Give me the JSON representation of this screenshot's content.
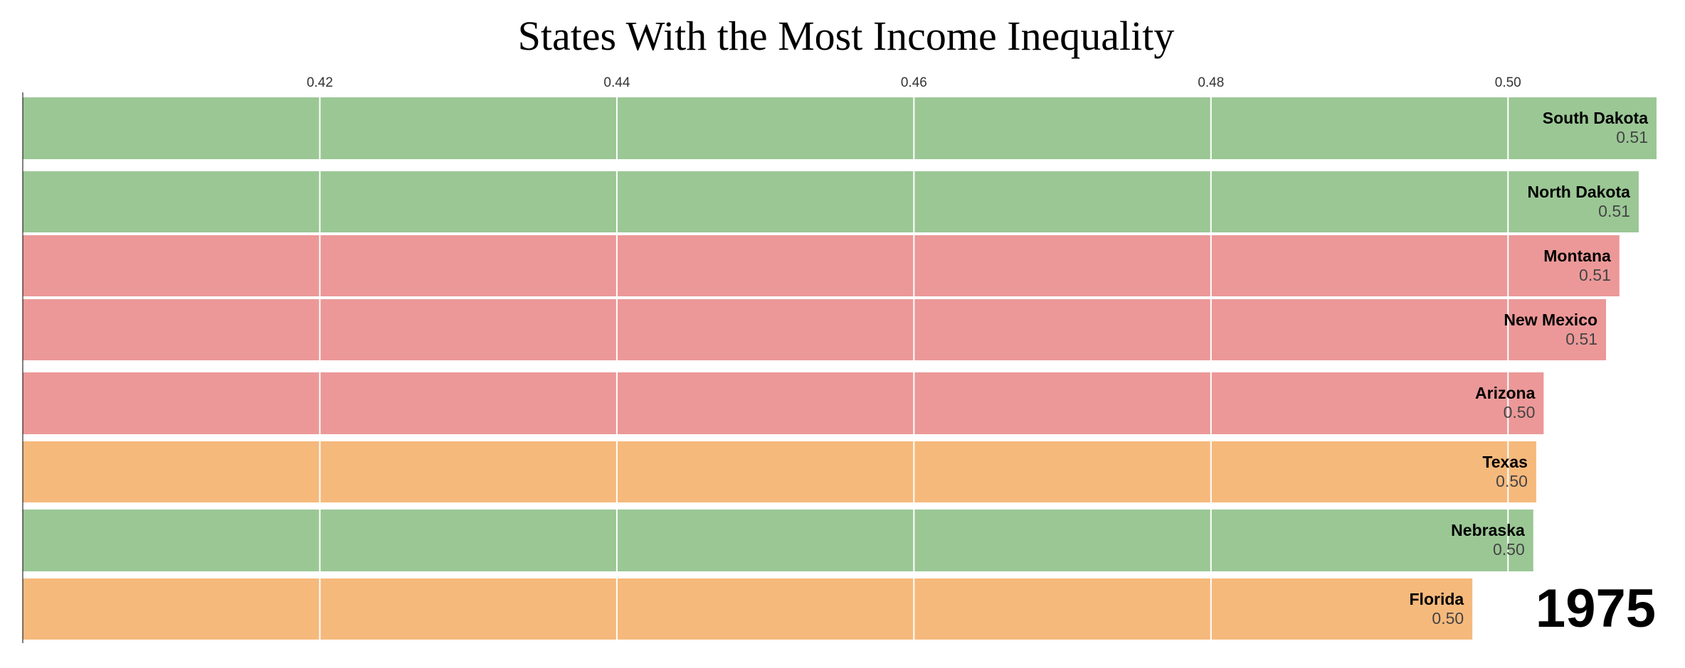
{
  "chart_data": {
    "type": "bar",
    "orientation": "horizontal",
    "title": "States With the Most Income Inequality",
    "xticks": [
      "0.42",
      "0.44",
      "0.46",
      "0.48",
      "0.50"
    ],
    "xlim": [
      0.4,
      0.51
    ],
    "year": "1975",
    "grid": true,
    "categories": [
      "South Dakota",
      "North Dakota",
      "Montana",
      "New Mexico",
      "Arizona",
      "Texas",
      "Nebraska",
      "Florida"
    ],
    "values": [
      0.51,
      0.5088,
      0.5075,
      0.5066,
      0.5024,
      0.5019,
      0.5017,
      0.4976
    ],
    "value_labels": [
      "0.51",
      "0.51",
      "0.51",
      "0.51",
      "0.50",
      "0.50",
      "0.50",
      "0.50"
    ],
    "colors": [
      "#9bc795",
      "#9bc795",
      "#ec9898",
      "#ec9898",
      "#ec9898",
      "#f6b97c",
      "#9bc795",
      "#f6b97c"
    ]
  }
}
